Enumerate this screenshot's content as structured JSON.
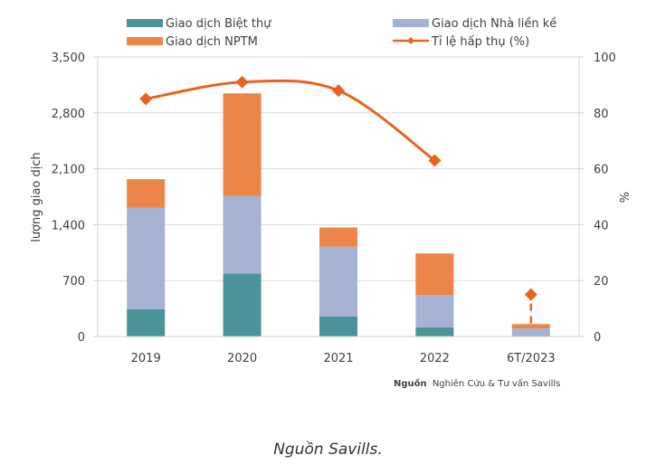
{
  "chart_data": {
    "type": "bar",
    "stacked": true,
    "categories": [
      "2019",
      "2020",
      "2021",
      "2022",
      "6T/2023"
    ],
    "series": [
      {
        "name": "Giao dịch Biệt thự",
        "type": "bar",
        "axis": "left",
        "color": "#4a9499",
        "values": [
          340,
          790,
          250,
          115,
          10
        ]
      },
      {
        "name": "Giao dịch Nhà liền kề",
        "type": "bar",
        "axis": "left",
        "color": "#a5b2d3",
        "values": [
          1270,
          970,
          875,
          405,
          90
        ]
      },
      {
        "name": "Giao dịch NPTM",
        "type": "bar",
        "axis": "left",
        "color": "#ec8547",
        "values": [
          360,
          1285,
          240,
          520,
          55
        ]
      },
      {
        "name": "Tỉ lệ hấp thụ (%)",
        "type": "line",
        "axis": "right",
        "color": "#e8641e",
        "values": [
          85,
          91,
          88,
          63,
          15
        ],
        "dashed_last_segment": true
      }
    ],
    "ylabel": "lượng giao dịch",
    "y2label": "%",
    "ylim": [
      0,
      3500
    ],
    "y2lim": [
      0,
      100
    ],
    "yticks": [
      "0",
      "700",
      "1,400",
      "2,100",
      "2,800",
      "3,500"
    ],
    "ytick_values": [
      0,
      700,
      1400,
      2100,
      2800,
      3500
    ],
    "y2ticks": [
      "0",
      "20",
      "40",
      "60",
      "80",
      "100"
    ],
    "y2tick_values": [
      0,
      20,
      40,
      60,
      80,
      100
    ],
    "grid": true,
    "legend_position": "top",
    "source_bold": "Nguồn",
    "source_text": "Nghiên Cứu & Tư vấn Savills"
  },
  "caption": "Nguồn Savills."
}
